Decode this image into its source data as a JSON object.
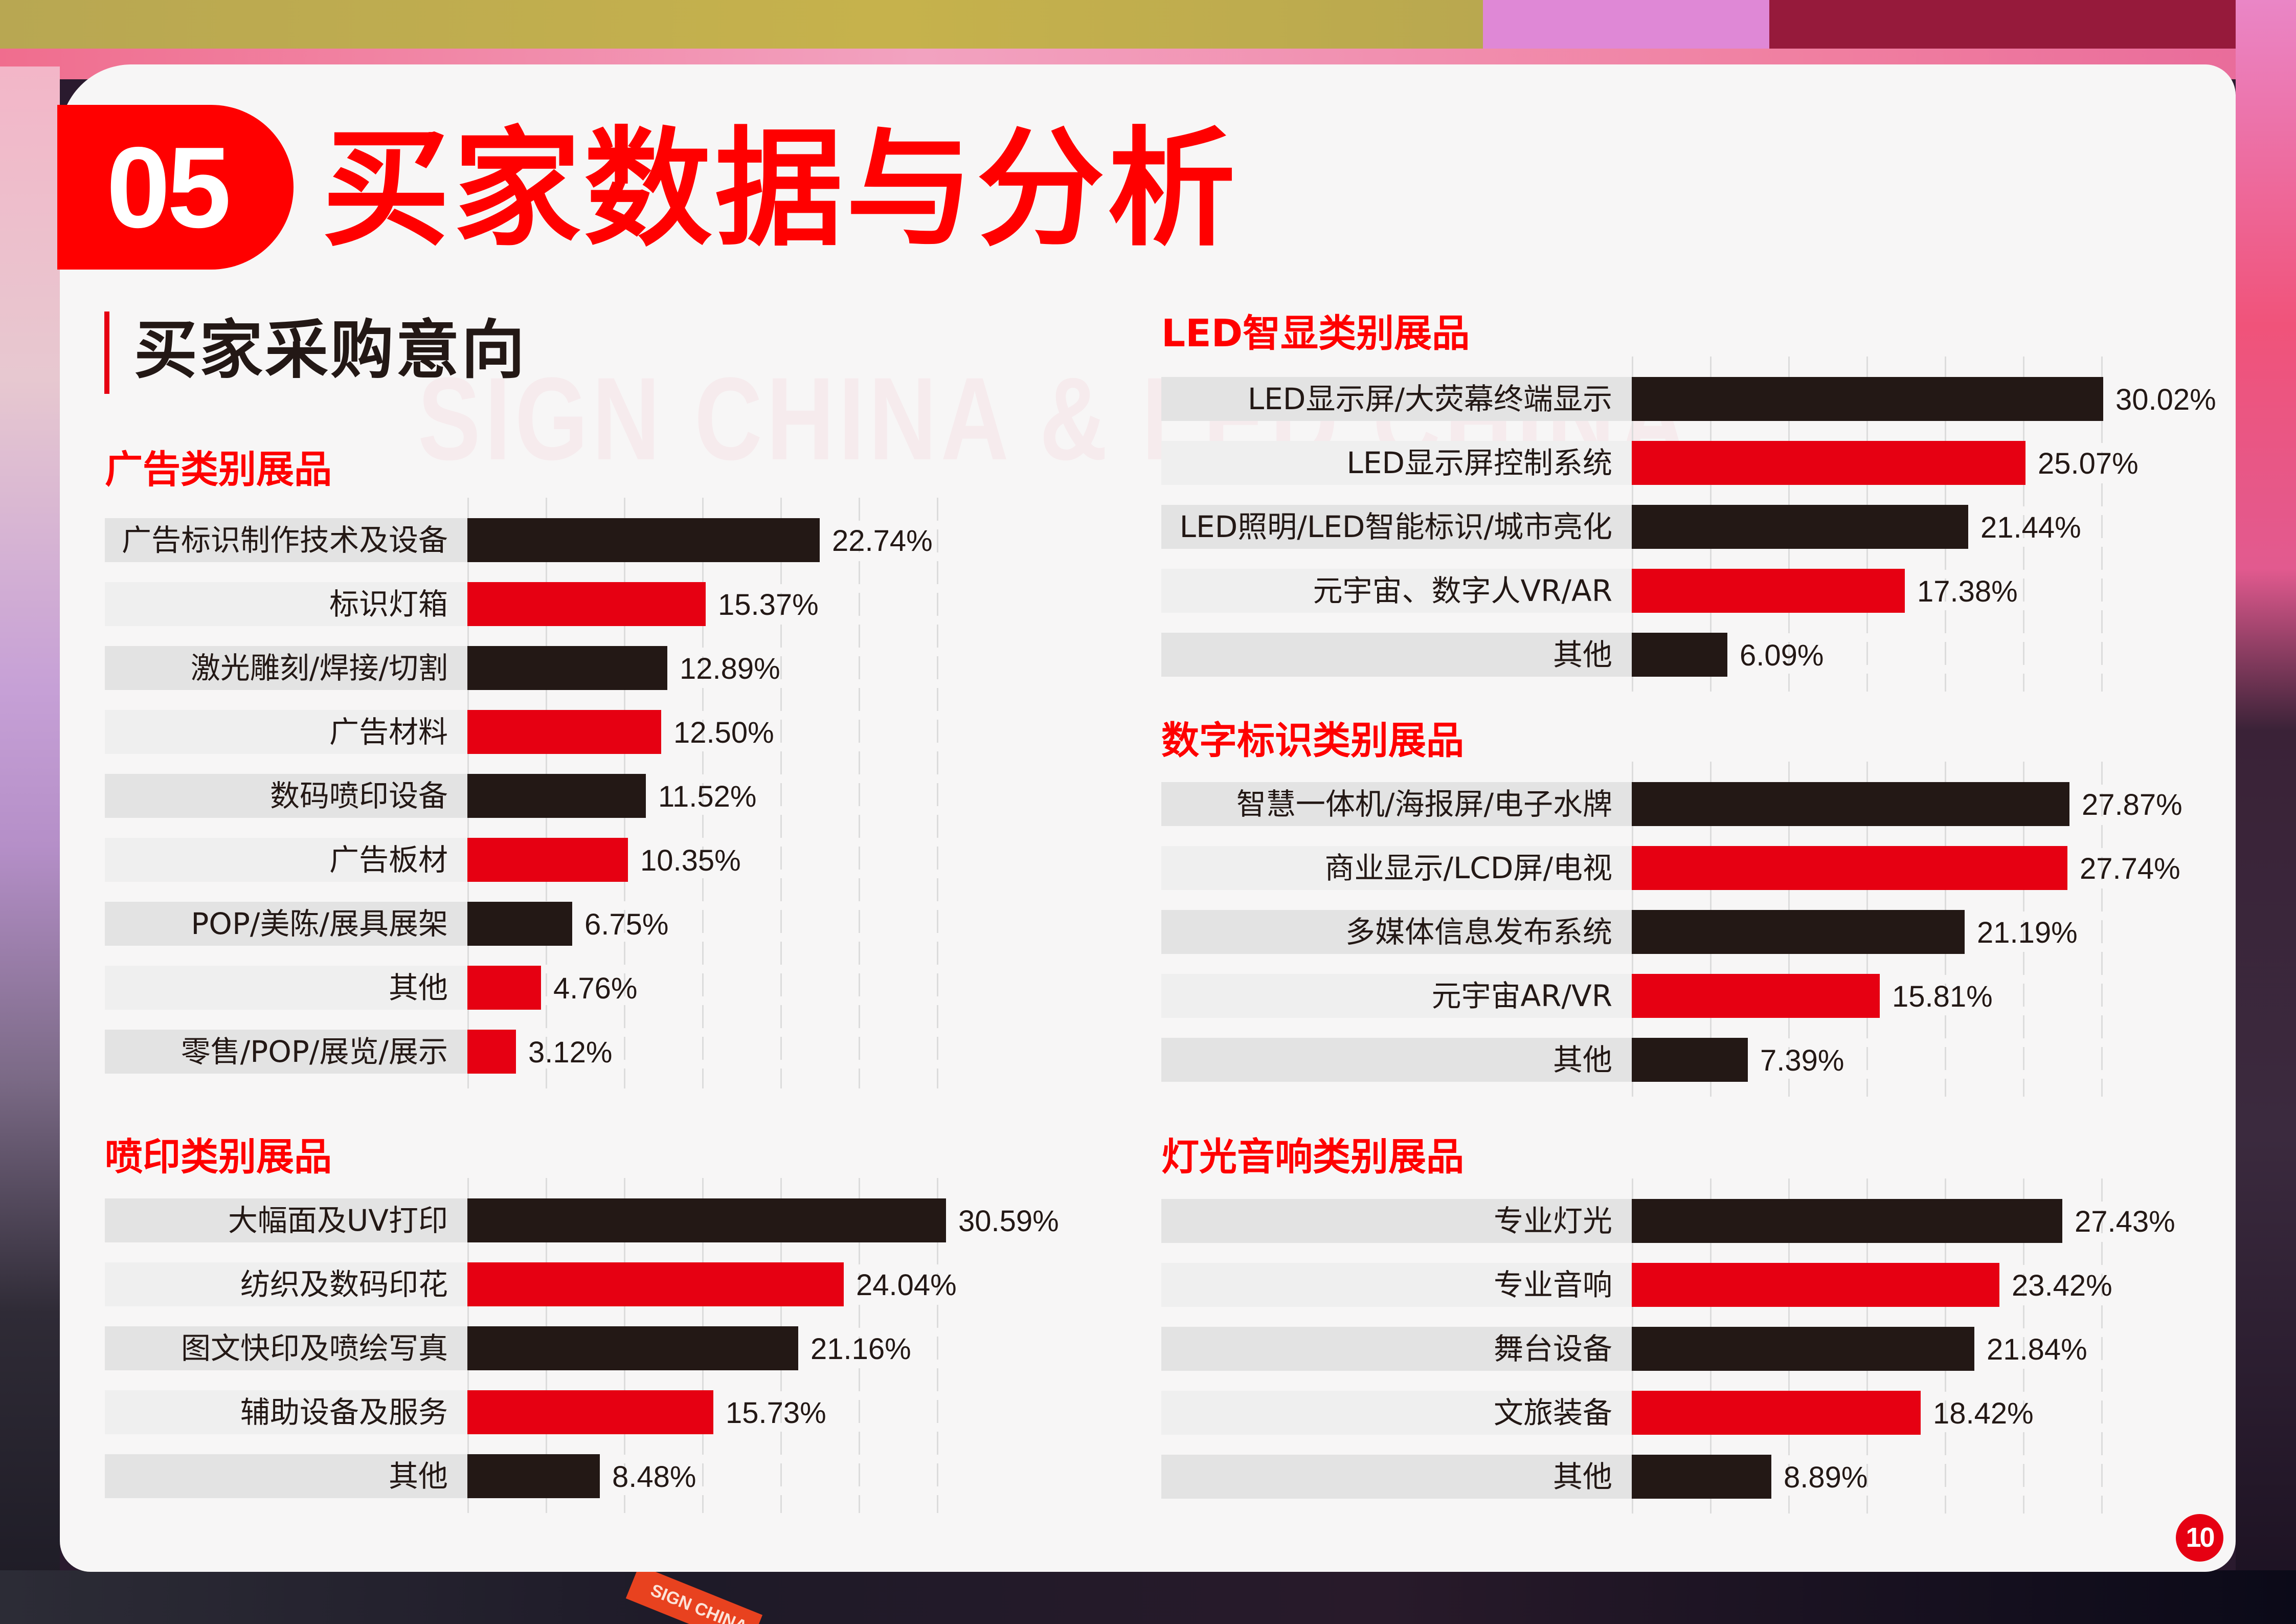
{
  "header": {
    "section_number": "05",
    "title": "买家数据与分析",
    "subtitle": "买家采购意向",
    "watermark": "SIGN CHINA & LED CHINA"
  },
  "page_number": "10",
  "colors": {
    "title_red": "#ff0000",
    "bar_red": "#e60012",
    "bar_black": "#231815",
    "label_bg_dark": "#e3e3e3",
    "label_bg_light": "#efefef"
  },
  "chart_data": [
    {
      "id": "advertising",
      "type": "bar",
      "orientation": "horizontal",
      "title": "广告类别展品",
      "categories": [
        "广告标识制作技术及设备",
        "标识灯箱",
        "激光雕刻/焊接/切割",
        "广告材料",
        "数码喷印设备",
        "广告板材",
        "POP/美陈/展具展架",
        "其他",
        "零售/POP/展览/展示"
      ],
      "values": [
        22.74,
        15.37,
        12.89,
        12.5,
        11.52,
        10.35,
        6.75,
        4.76,
        3.12
      ],
      "labels": [
        "22.74%",
        "15.37%",
        "12.89%",
        "12.50%",
        "11.52%",
        "10.35%",
        "6.75%",
        "4.76%",
        "3.12%"
      ],
      "bar_colors": [
        "black",
        "red",
        "black",
        "red",
        "black",
        "red",
        "black",
        "red",
        "red"
      ],
      "unit": "%",
      "grid": true,
      "xlim": [
        0,
        30
      ]
    },
    {
      "id": "printing",
      "type": "bar",
      "orientation": "horizontal",
      "title": "喷印类别展品",
      "categories": [
        "大幅面及UV打印",
        "纺织及数码印花",
        "图文快印及喷绘写真",
        "辅助设备及服务",
        "其他"
      ],
      "values": [
        30.59,
        24.04,
        21.16,
        15.73,
        8.48
      ],
      "labels": [
        "30.59%",
        "24.04%",
        "21.16%",
        "15.73%",
        "8.48%"
      ],
      "bar_colors": [
        "black",
        "red",
        "black",
        "red",
        "black"
      ],
      "unit": "%",
      "grid": true,
      "xlim": [
        0,
        35
      ]
    },
    {
      "id": "led",
      "type": "bar",
      "orientation": "horizontal",
      "title": "LED智显类别展品",
      "categories": [
        "LED显示屏/大荧幕终端显示",
        "LED显示屏控制系统",
        "LED照明/LED智能标识/城市亮化",
        "元宇宙、数字人VR/AR",
        "其他"
      ],
      "values": [
        30.02,
        25.07,
        21.44,
        17.38,
        6.09
      ],
      "labels": [
        "30.02%",
        "25.07%",
        "21.44%",
        "17.38%",
        "6.09%"
      ],
      "bar_colors": [
        "black",
        "red",
        "black",
        "red",
        "black"
      ],
      "unit": "%",
      "grid": true,
      "xlim": [
        0,
        35
      ]
    },
    {
      "id": "digital_signage",
      "type": "bar",
      "orientation": "horizontal",
      "title": "数字标识类别展品",
      "categories": [
        "智慧一体机/海报屏/电子水牌",
        "商业显示/LCD屏/电视",
        "多媒体信息发布系统",
        "元宇宙AR/VR",
        "其他"
      ],
      "values": [
        27.87,
        27.74,
        21.19,
        15.81,
        7.39
      ],
      "labels": [
        "27.87%",
        "27.74%",
        "21.19%",
        "15.81%",
        "7.39%"
      ],
      "bar_colors": [
        "black",
        "red",
        "black",
        "red",
        "black"
      ],
      "unit": "%",
      "grid": true,
      "xlim": [
        0,
        35
      ]
    },
    {
      "id": "lighting_audio",
      "type": "bar",
      "orientation": "horizontal",
      "title": "灯光音响类别展品",
      "categories": [
        "专业灯光",
        "专业音响",
        "舞台设备",
        "文旅装备",
        "其他"
      ],
      "values": [
        27.43,
        23.42,
        21.84,
        18.42,
        8.89
      ],
      "labels": [
        "27.43%",
        "23.42%",
        "21.84%",
        "18.42%",
        "8.89%"
      ],
      "bar_colors": [
        "black",
        "red",
        "black",
        "red",
        "black"
      ],
      "unit": "%",
      "grid": true,
      "xlim": [
        0,
        35
      ]
    }
  ]
}
